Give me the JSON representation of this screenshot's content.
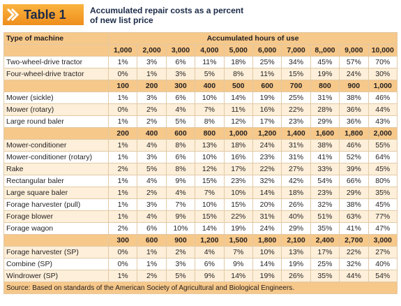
{
  "header": {
    "badge": "Table 1",
    "title_lines": [
      "Accumulated repair costs as a percent",
      "of new list price"
    ]
  },
  "table": {
    "machine_header": "Type of machine",
    "hours_header": "Accumulated hours of use",
    "groups": [
      {
        "hours": [
          "1,000",
          "2,000",
          "3,000",
          "4,000",
          "5,000",
          "6,000",
          "7,000",
          "8,,000",
          "9,000",
          "10,000"
        ],
        "rows": [
          {
            "machine": "Two-wheel-drive tractor",
            "values": [
              "1%",
              "3%",
              "6%",
              "11%",
              "18%",
              "25%",
              "34%",
              "45%",
              "57%",
              "70%"
            ]
          },
          {
            "machine": "Four-wheel-drive tractor",
            "values": [
              "0%",
              "1%",
              "3%",
              "5%",
              "8%",
              "11%",
              "15%",
              "19%",
              "24%",
              "30%"
            ]
          }
        ]
      },
      {
        "hours": [
          "100",
          "200",
          "300",
          "400",
          "500",
          "600",
          "700",
          "800",
          "900",
          "1,000"
        ],
        "rows": [
          {
            "machine": "Mower (sickle)",
            "values": [
              "1%",
              "3%",
              "6%",
              "10%",
              "14%",
              "19%",
              "25%",
              "31%",
              "38%",
              "46%"
            ]
          },
          {
            "machine": "Mower (rotary)",
            "values": [
              "0%",
              "2%",
              "4%",
              "7%",
              "11%",
              "16%",
              "22%",
              "28%",
              "36%",
              "44%"
            ]
          },
          {
            "machine": "Large round baler",
            "values": [
              "1%",
              "2%",
              "5%",
              "8%",
              "12%",
              "17%",
              "23%",
              "29%",
              "36%",
              "43%"
            ]
          }
        ]
      },
      {
        "hours": [
          "200",
          "400",
          "600",
          "800",
          "1,000",
          "1,200",
          "1,400",
          "1,600",
          "1,800",
          "2,000"
        ],
        "rows": [
          {
            "machine": "Mower-conditioner",
            "values": [
              "1%",
              "4%",
              "8%",
              "13%",
              "18%",
              "24%",
              "31%",
              "38%",
              "46%",
              "55%"
            ]
          },
          {
            "machine": "Mower-conditioner (rotary)",
            "values": [
              "1%",
              "3%",
              "6%",
              "10%",
              "16%",
              "23%",
              "31%",
              "41%",
              "52%",
              "64%"
            ]
          },
          {
            "machine": "Rake",
            "values": [
              "2%",
              "5%",
              "8%",
              "12%",
              "17%",
              "22%",
              "27%",
              "33%",
              "39%",
              "45%"
            ]
          },
          {
            "machine": "Rectangular baler",
            "values": [
              "1%",
              "4%",
              "9%",
              "15%",
              "23%",
              "32%",
              "42%",
              "54%",
              "66%",
              "80%"
            ]
          },
          {
            "machine": "Large square baler",
            "values": [
              "1%",
              "2%",
              "4%",
              "7%",
              "10%",
              "14%",
              "18%",
              "23%",
              "29%",
              "35%"
            ]
          },
          {
            "machine": "Forage harvester (pull)",
            "values": [
              "1%",
              "3%",
              "7%",
              "10%",
              "15%",
              "20%",
              "26%",
              "32%",
              "38%",
              "45%"
            ]
          },
          {
            "machine": "Forage blower",
            "values": [
              "1%",
              "4%",
              "9%",
              "15%",
              "22%",
              "31%",
              "40%",
              "51%",
              "63%",
              "77%"
            ]
          },
          {
            "machine": "Forage wagon",
            "values": [
              "2%",
              "6%",
              "10%",
              "14%",
              "19%",
              "24%",
              "29%",
              "35%",
              "41%",
              "47%"
            ]
          }
        ]
      },
      {
        "hours": [
          "300",
          "600",
          "900",
          "1,200",
          "1,500",
          "1,800",
          "2,100",
          "2,400",
          "2,700",
          "3,000"
        ],
        "rows": [
          {
            "machine": "Forage harvester (SP)",
            "values": [
              "0%",
              "1%",
              "2%",
              "4%",
              "7%",
              "10%",
              "13%",
              "17%",
              "22%",
              "27%"
            ]
          },
          {
            "machine": "Combine (SP)",
            "values": [
              "0%",
              "1%",
              "3%",
              "6%",
              "9%",
              "14%",
              "19%",
              "25%",
              "32%",
              "40%"
            ]
          },
          {
            "machine": "Windrower (SP)",
            "values": [
              "1%",
              "2%",
              "5%",
              "9%",
              "14%",
              "19%",
              "26%",
              "35%",
              "44%",
              "54%"
            ]
          }
        ]
      }
    ]
  },
  "source": "Source: Based on standards of the American Society of Agricultural and Biological Engineers."
}
